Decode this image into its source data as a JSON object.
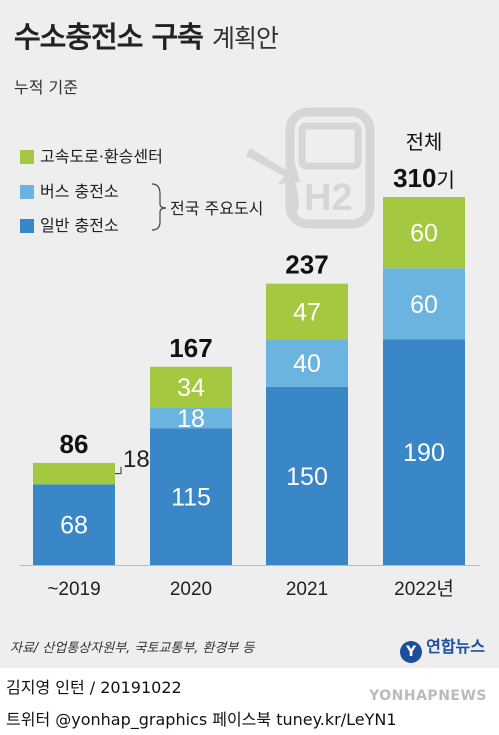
{
  "header": {
    "title": "수소충전소 구축",
    "title_suffix": "계획안",
    "subtitle": "누적 기준"
  },
  "legend": {
    "items": [
      {
        "label": "고속도로·환승센터",
        "color": "#a4c83f"
      },
      {
        "label": "버스 충전소",
        "color": "#6cb4e0"
      },
      {
        "label": "일반 충전소",
        "color": "#3a87c7"
      }
    ],
    "group_note": "전국 주요도시"
  },
  "chart_data": {
    "type": "bar",
    "stacked": true,
    "categories": [
      "~2019",
      "2020",
      "2021",
      "2022년"
    ],
    "series": [
      {
        "name": "일반 충전소",
        "values": [
          68,
          115,
          150,
          190
        ],
        "color": "#3a87c7"
      },
      {
        "name": "버스 충전소",
        "values": [
          null,
          18,
          40,
          60
        ],
        "color": "#6cb4e0"
      },
      {
        "name": "고속도로·환승센터",
        "values": [
          18,
          34,
          47,
          60
        ],
        "color": "#a4c83f"
      }
    ],
    "totals": [
      86,
      167,
      237,
      310
    ],
    "segment_labels": [
      [
        "68",
        "",
        "18"
      ],
      [
        "115",
        "18",
        "34"
      ],
      [
        "150",
        "40",
        "47"
      ],
      [
        "190",
        "60",
        "60"
      ]
    ],
    "total_labels": [
      "86",
      "167",
      "237",
      "310"
    ],
    "last_total_prefix": "전체",
    "last_total_suffix": "기",
    "ylim": [
      0,
      330
    ]
  },
  "footer": {
    "source": "자료/ 산업통상자원부, 국토교통부, 환경부 등",
    "brand": "연합뉴스",
    "brand_logo": "Y",
    "author": "김지영 인턴 / 20191022",
    "social": "트위터 @yonhap_graphics  페이스북 tuney.kr/LeYN1",
    "watermark": "YONHAPNEWS"
  },
  "icons": {
    "hydrogen_station": "hydrogen-fuel-pump-icon",
    "hydrogen_label": "H2"
  }
}
